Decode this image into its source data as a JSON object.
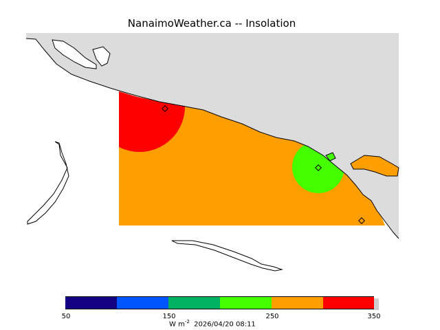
{
  "title": "NanaimoWeather.ca  --  Insolation",
  "colorbar": {
    "bins": [
      {
        "from": 50,
        "to": 100,
        "color": "#120083"
      },
      {
        "from": 100,
        "to": 150,
        "color": "#0055ff"
      },
      {
        "from": 150,
        "to": 200,
        "color": "#00b063"
      },
      {
        "from": 200,
        "to": 250,
        "color": "#44ff00"
      },
      {
        "from": 250,
        "to": 300,
        "color": "#ff9e00"
      },
      {
        "from": 300,
        "to": 350,
        "color": "#ff0000"
      }
    ],
    "tick_labels": [
      "50",
      "150",
      "250",
      "350"
    ]
  },
  "footer": {
    "unit_base": "W m",
    "unit_exp": "-2",
    "timestamp": "2026/04/20 08:11"
  },
  "map": {
    "land_color": "#dcdcdc",
    "coast_color": "#000000",
    "field_background": "#ff9e00",
    "hot_region_color": "#ff0000",
    "cool_region_color": "#44ff00"
  }
}
